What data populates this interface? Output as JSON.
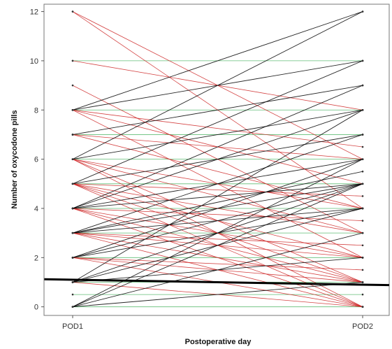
{
  "chart_data": {
    "type": "line",
    "xlabel": "Postoperative day",
    "ylabel": "Number of oxycodone pills",
    "categories": [
      "POD1",
      "POD2"
    ],
    "yticks": [
      0,
      2,
      4,
      6,
      8,
      10,
      12
    ],
    "ylim": [
      -0.35,
      12.3
    ],
    "grid": false,
    "colors": {
      "increase": "#000000",
      "decrease": "#cc2222",
      "unchanged": "#2ea84a",
      "trend": "#000000"
    },
    "patient_lines": [
      [
        12,
        6
      ],
      [
        12,
        4
      ],
      [
        10,
        10
      ],
      [
        10,
        8
      ],
      [
        9,
        3
      ],
      [
        8,
        12
      ],
      [
        8,
        10
      ],
      [
        8,
        8
      ],
      [
        8,
        6.5
      ],
      [
        8,
        5
      ],
      [
        8,
        2
      ],
      [
        7,
        9
      ],
      [
        7,
        7
      ],
      [
        7,
        6
      ],
      [
        7,
        4
      ],
      [
        6,
        12
      ],
      [
        6,
        8
      ],
      [
        6,
        6
      ],
      [
        6,
        4
      ],
      [
        6,
        3
      ],
      [
        6,
        1
      ],
      [
        6,
        0
      ],
      [
        5,
        10
      ],
      [
        5,
        7
      ],
      [
        5,
        5
      ],
      [
        5,
        4.5
      ],
      [
        5,
        3
      ],
      [
        5,
        2
      ],
      [
        5,
        1
      ],
      [
        5,
        0
      ],
      [
        4,
        9
      ],
      [
        4,
        8
      ],
      [
        4,
        6
      ],
      [
        4,
        5
      ],
      [
        4,
        4
      ],
      [
        4,
        3.5
      ],
      [
        4,
        2
      ],
      [
        4,
        1
      ],
      [
        4,
        0
      ],
      [
        3,
        7
      ],
      [
        3,
        5.5
      ],
      [
        3,
        5
      ],
      [
        3,
        4
      ],
      [
        3,
        3
      ],
      [
        3,
        2.5
      ],
      [
        3,
        2
      ],
      [
        3,
        1
      ],
      [
        3,
        0
      ],
      [
        2,
        6
      ],
      [
        2,
        5
      ],
      [
        2,
        4
      ],
      [
        2,
        2
      ],
      [
        2,
        1.5
      ],
      [
        2,
        1
      ],
      [
        2,
        0
      ],
      [
        1,
        8
      ],
      [
        1,
        5
      ],
      [
        1,
        4
      ],
      [
        1,
        2
      ],
      [
        1,
        1
      ],
      [
        1,
        0
      ],
      [
        0,
        6
      ],
      [
        0,
        5
      ],
      [
        0,
        3
      ],
      [
        0,
        1
      ],
      [
        0,
        0
      ],
      [
        0.5,
        0.5
      ]
    ],
    "trend_line": {
      "start": 1.1,
      "end": 0.9
    }
  }
}
